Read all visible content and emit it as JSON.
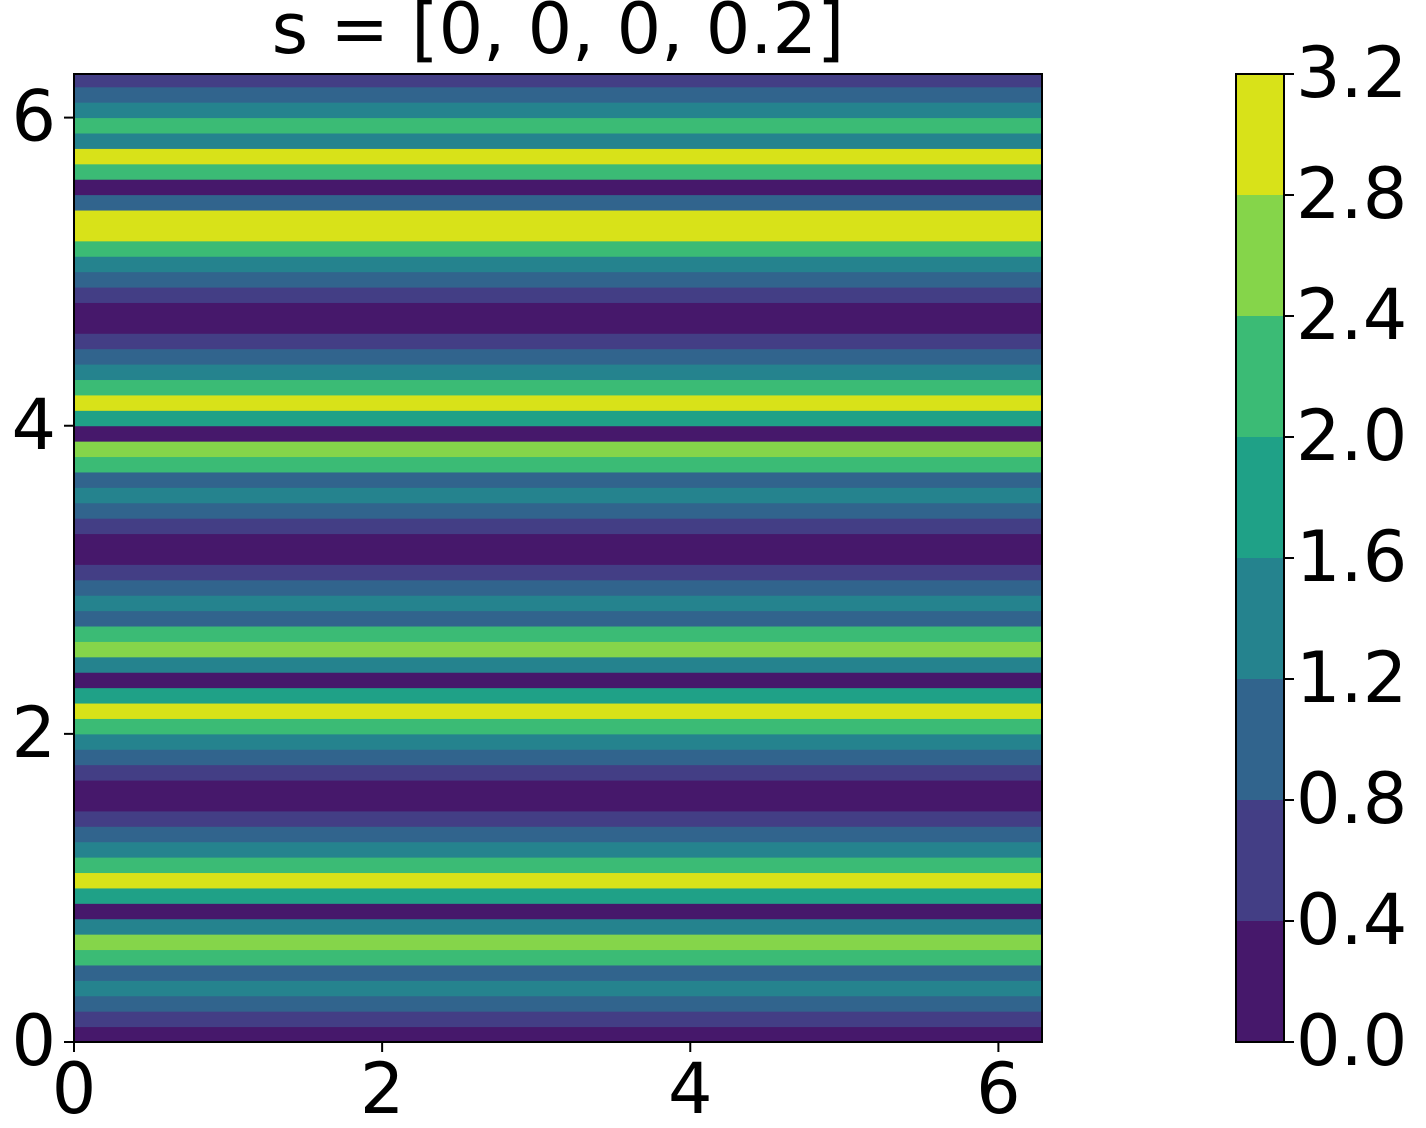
{
  "chart_data": {
    "type": "contourf",
    "title": "s = [0, 0, 0, 0.2]",
    "y": [
      0.0,
      0.1,
      0.2,
      0.3,
      0.4,
      0.5,
      0.6,
      0.7,
      0.8,
      0.9,
      1.0,
      1.1,
      1.2,
      1.3,
      1.4,
      1.5,
      1.6,
      1.7,
      1.8,
      1.9,
      2.0,
      2.1,
      2.2,
      2.3,
      2.4,
      2.5,
      2.6,
      2.7,
      2.8,
      2.9,
      3.0,
      3.1,
      3.2,
      3.3,
      3.4,
      3.5,
      3.6,
      3.7,
      3.8,
      3.9,
      4.0,
      4.1,
      4.2,
      4.3,
      4.4,
      4.5,
      4.6,
      4.7,
      4.8,
      4.9,
      5.0,
      5.1,
      5.2,
      5.3,
      5.4,
      5.5,
      5.6,
      5.7,
      5.8,
      5.9,
      6.0,
      6.1,
      6.2
    ],
    "values": [
      0.2,
      0.6,
      1.0,
      1.3,
      0.9,
      2.2,
      2.7,
      1.2,
      0.2,
      1.9,
      2.8,
      2.0,
      1.4,
      1.0,
      0.6,
      0.1,
      0.1,
      0.6,
      1.0,
      1.4,
      2.0,
      2.8,
      1.9,
      0.2,
      1.2,
      2.7,
      2.2,
      0.9,
      1.3,
      1.0,
      0.6,
      0.1,
      0.1,
      0.6,
      1.0,
      1.3,
      0.9,
      2.2,
      2.7,
      0.2,
      1.9,
      2.8,
      2.0,
      1.4,
      1.0,
      0.6,
      0.1,
      0.1,
      0.6,
      1.0,
      1.4,
      2.0,
      2.8,
      2.9,
      0.9,
      0.2,
      2.2,
      2.8,
      1.2,
      2.0,
      1.3,
      0.8,
      0.6
    ],
    "xlim": [
      0,
      6.283
    ],
    "ylim": [
      0,
      6.283
    ],
    "xticks": [
      0,
      2,
      4,
      6
    ],
    "yticks": [
      0,
      2,
      4,
      6
    ],
    "levels": [
      {
        "value": 0,
        "label": "0.0"
      },
      {
        "value": 0.4,
        "label": "0.4"
      },
      {
        "value": 0.8,
        "label": "0.8"
      },
      {
        "value": 1.2,
        "label": "1.2"
      },
      {
        "value": 1.6,
        "label": "1.6"
      },
      {
        "value": 2.0,
        "label": "2.0"
      },
      {
        "value": 2.4,
        "label": "2.4"
      },
      {
        "value": 2.8,
        "label": "2.8"
      },
      {
        "value": 3.2,
        "label": "3.2"
      }
    ],
    "colors": [
      "#46186b",
      "#433e85",
      "#31648d",
      "#25838e",
      "#1fa187",
      "#3bbb75",
      "#85d54a",
      "#d8e219"
    ]
  }
}
